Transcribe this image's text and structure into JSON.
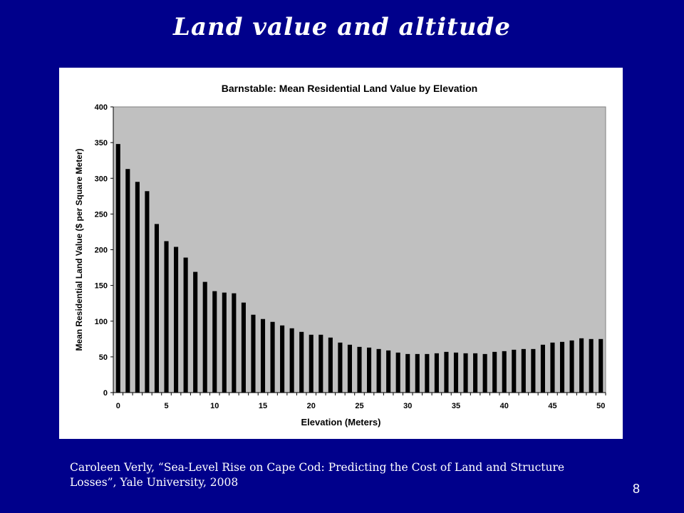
{
  "slide": {
    "title": "Land value and altitude",
    "citation": "Caroleen Verly, “Sea-Level Rise on Cape Cod: Predicting the Cost of Land and Structure Losses”, Yale University, 2008",
    "page_number": "8"
  },
  "colors": {
    "background": "#00008b",
    "plot_area": "#c0c0c0",
    "bars": "#000000",
    "text": "#ffffff"
  },
  "chart_data": {
    "type": "bar",
    "title": "Barnstable: Mean Residential Land Value by Elevation",
    "xlabel": "Elevation (Meters)",
    "ylabel": "Mean Residential Land Value ($ per Square Meter)",
    "categories": [
      0,
      1,
      2,
      3,
      4,
      5,
      6,
      7,
      8,
      9,
      10,
      11,
      12,
      13,
      14,
      15,
      16,
      17,
      18,
      19,
      20,
      21,
      22,
      23,
      24,
      25,
      26,
      27,
      28,
      29,
      30,
      31,
      32,
      33,
      34,
      35,
      36,
      37,
      38,
      39,
      40,
      41,
      42,
      43,
      44,
      45,
      46,
      47,
      48,
      49,
      50
    ],
    "values": [
      348,
      313,
      295,
      282,
      236,
      212,
      204,
      189,
      169,
      155,
      142,
      140,
      139,
      126,
      109,
      103,
      99,
      94,
      90,
      85,
      81,
      81,
      77,
      70,
      67,
      64,
      63,
      61,
      59,
      56,
      54,
      54,
      54,
      55,
      57,
      56,
      55,
      55,
      54,
      57,
      58,
      60,
      61,
      61,
      67,
      70,
      71,
      73,
      76,
      75,
      75
    ],
    "x_tick_labels": [
      "0",
      "5",
      "10",
      "15",
      "20",
      "25",
      "30",
      "35",
      "40",
      "45",
      "50"
    ],
    "y_tick_labels": [
      "0",
      "50",
      "100",
      "150",
      "200",
      "250",
      "300",
      "350",
      "400"
    ],
    "ylim": [
      0,
      400
    ],
    "grid": false,
    "legend": false
  }
}
